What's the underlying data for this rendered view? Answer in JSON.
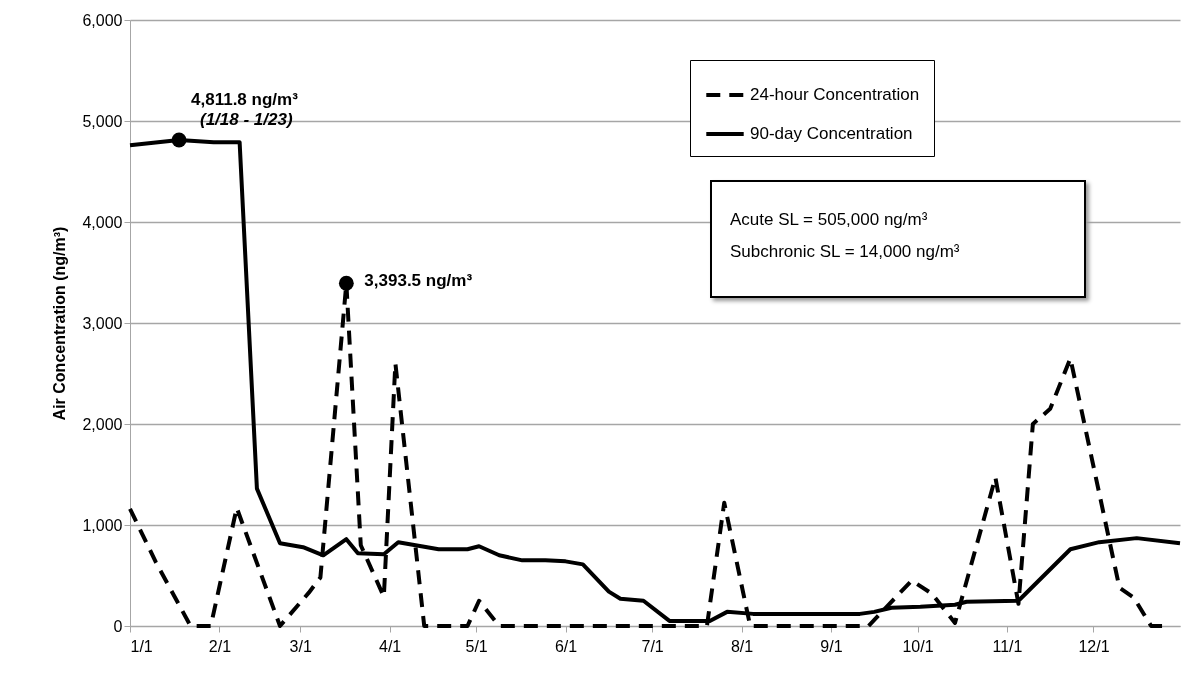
{
  "chart_data": {
    "type": "line",
    "ylabel": "Air Concentration (ng/m³)",
    "xlim": [
      "--01-01",
      "--12-31"
    ],
    "xticks": [
      {
        "value": "--01-01",
        "label": "1/1"
      },
      {
        "value": "--02-01",
        "label": "2/1"
      },
      {
        "value": "--03-01",
        "label": "3/1"
      },
      {
        "value": "--04-01",
        "label": "4/1"
      },
      {
        "value": "--05-01",
        "label": "5/1"
      },
      {
        "value": "--06-01",
        "label": "6/1"
      },
      {
        "value": "--07-01",
        "label": "7/1"
      },
      {
        "value": "--08-01",
        "label": "8/1"
      },
      {
        "value": "--09-01",
        "label": "9/1"
      },
      {
        "value": "--10-01",
        "label": "10/1"
      },
      {
        "value": "--11-01",
        "label": "11/1"
      },
      {
        "value": "--12-01",
        "label": "12/1"
      }
    ],
    "ylim": [
      0,
      6000
    ],
    "yticks": [
      {
        "value": 0,
        "label": "0"
      },
      {
        "value": 1000,
        "label": "1,000"
      },
      {
        "value": 2000,
        "label": "2,000"
      },
      {
        "value": 3000,
        "label": "3,000"
      },
      {
        "value": 4000,
        "label": "4,000"
      },
      {
        "value": 5000,
        "label": "5,000"
      },
      {
        "value": 6000,
        "label": "6,000"
      }
    ],
    "grid": "y",
    "legend": "top right",
    "series": [
      {
        "name": "24-hour Concentration",
        "color": "#000000",
        "line_style": "dashed",
        "x": [
          "--01-01",
          "--01-10",
          "--01-22",
          "--01-29",
          "--02-07",
          "--02-22",
          "--03-04",
          "--03-08",
          "--03-17",
          "--03-22",
          "--03-30",
          "--04-03",
          "--04-13",
          "--04-28",
          "--05-02",
          "--05-09",
          "--07-20",
          "--07-26",
          "--08-04",
          "--09-14",
          "--09-29",
          "--10-06",
          "--10-14",
          "--10-28",
          "--11-05",
          "--11-10",
          "--11-16",
          "--11-23",
          "--12-10",
          "--12-15",
          "--12-21",
          "--12-25"
        ],
        "values": [
          1160,
          630,
          0,
          0,
          1170,
          0,
          330,
          480,
          3393.5,
          800,
          290,
          2600,
          0,
          0,
          250,
          0,
          0,
          1220,
          0,
          0,
          450,
          320,
          30,
          1470,
          220,
          2000,
          2150,
          2650,
          380,
          280,
          0,
          0
        ]
      },
      {
        "name": "90-day Concentration",
        "color": "#000000",
        "line_style": "solid",
        "x": [
          "--01-01",
          "--01-18",
          "--01-30",
          "--02-08",
          "--02-14",
          "--02-22",
          "--03-02",
          "--03-09",
          "--03-17",
          "--03-21",
          "--03-30",
          "--04-04",
          "--04-18",
          "--04-28",
          "--05-02",
          "--05-09",
          "--05-17",
          "--05-25",
          "--06-01",
          "--06-07",
          "--06-16",
          "--06-20",
          "--06-28",
          "--07-07",
          "--07-21",
          "--07-27",
          "--08-05",
          "--09-11",
          "--09-16",
          "--09-22",
          "--10-02",
          "--10-14",
          "--10-18",
          "--11-05",
          "--11-23",
          "--12-03",
          "--12-16",
          "--12-31"
        ],
        "values": [
          4760,
          4811.8,
          4790,
          4790,
          1360,
          820,
          780,
          700,
          860,
          720,
          710,
          830,
          760,
          760,
          790,
          700,
          650,
          650,
          640,
          610,
          340,
          270,
          250,
          50,
          50,
          140,
          120,
          120,
          140,
          180,
          190,
          210,
          240,
          250,
          760,
          830,
          870,
          820
        ]
      }
    ],
    "annotations": [
      {
        "text": "4,811.8 ng/m³",
        "x": "--01-18",
        "y": 4811.8
      },
      "(1/18 - 1/23)",
      {
        "text": "3,393.5 ng/m³",
        "x": "--03-17",
        "y": 3393.5
      },
      "Acute SL = 505,000 ng/m³",
      "Subchronic SL = 14,000 ng/m³"
    ]
  }
}
